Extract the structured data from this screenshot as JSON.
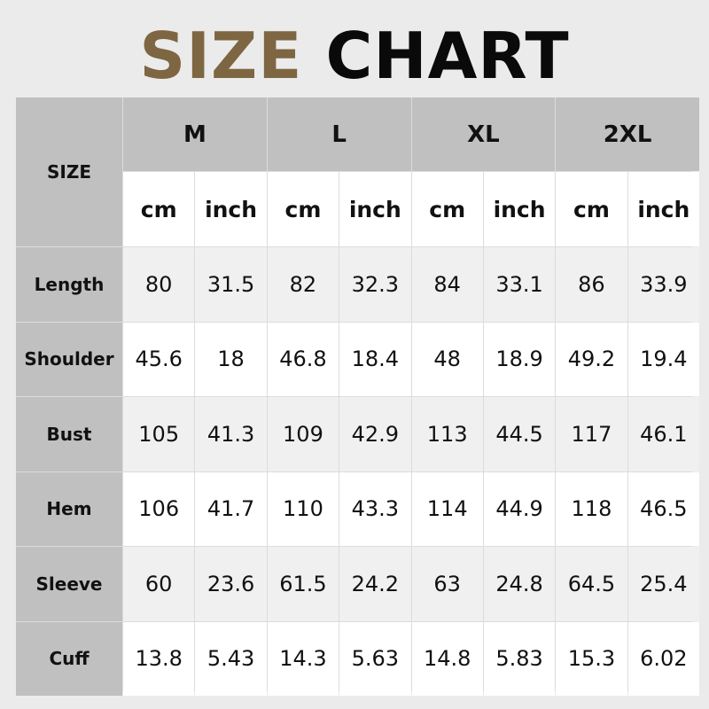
{
  "title": {
    "part1": "SIZE",
    "part2": "CHART"
  },
  "colors": {
    "title_accent": "#7d6641",
    "label_bg": "#c0c0c0",
    "row_alt": "#f0f0f0"
  },
  "table": {
    "corner_label": "SIZE",
    "sizes": [
      "M",
      "L",
      "XL",
      "2XL"
    ],
    "units": [
      "cm",
      "inch"
    ],
    "rows": [
      {
        "label": "Length",
        "values": [
          "80",
          "31.5",
          "82",
          "32.3",
          "84",
          "33.1",
          "86",
          "33.9"
        ]
      },
      {
        "label": "Shoulder",
        "values": [
          "45.6",
          "18",
          "46.8",
          "18.4",
          "48",
          "18.9",
          "49.2",
          "19.4"
        ]
      },
      {
        "label": "Bust",
        "values": [
          "105",
          "41.3",
          "109",
          "42.9",
          "113",
          "44.5",
          "117",
          "46.1"
        ]
      },
      {
        "label": "Hem",
        "values": [
          "106",
          "41.7",
          "110",
          "43.3",
          "114",
          "44.9",
          "118",
          "46.5"
        ]
      },
      {
        "label": "Sleeve",
        "values": [
          "60",
          "23.6",
          "61.5",
          "24.2",
          "63",
          "24.8",
          "64.5",
          "25.4"
        ]
      },
      {
        "label": "Cuff",
        "values": [
          "13.8",
          "5.43",
          "14.3",
          "5.63",
          "14.8",
          "5.83",
          "15.3",
          "6.02"
        ]
      }
    ]
  }
}
